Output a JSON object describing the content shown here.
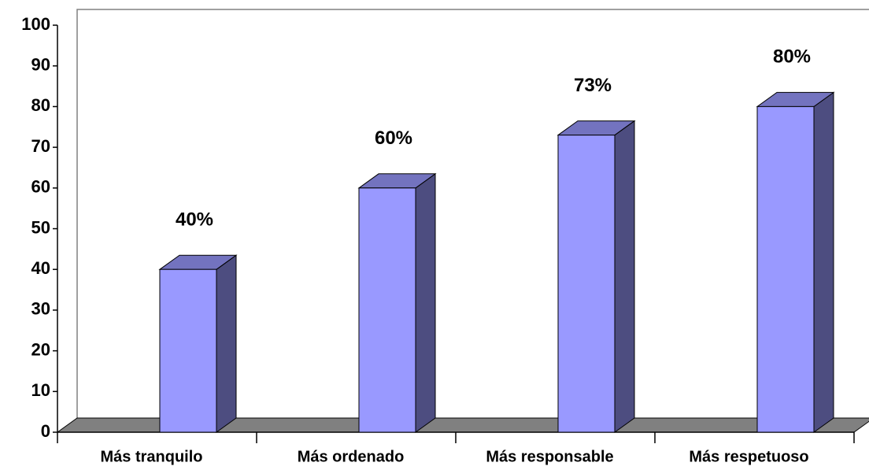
{
  "chart_data": {
    "type": "bar3d",
    "categories": [
      "Más tranquilo",
      "Más ordenado",
      "Más responsable",
      "Más respetuoso"
    ],
    "values": [
      40,
      60,
      73,
      80
    ],
    "value_labels": [
      "40%",
      "60%",
      "73%",
      "80%"
    ],
    "color": "#9999ff",
    "ylim": [
      0,
      100
    ],
    "yticks": [
      0,
      10,
      20,
      30,
      40,
      50,
      60,
      70,
      80,
      90,
      100
    ],
    "grid": false
  }
}
